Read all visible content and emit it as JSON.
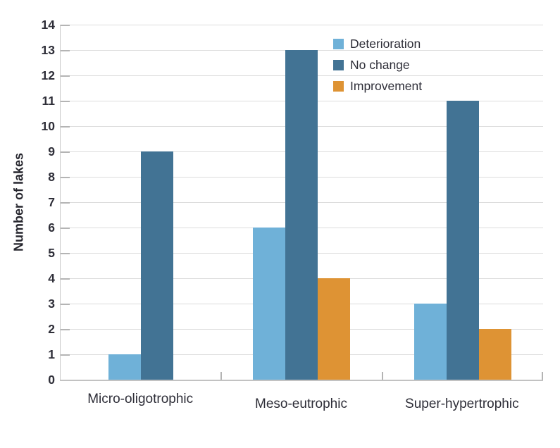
{
  "chart_data": {
    "type": "bar",
    "title": "",
    "xlabel": "",
    "ylabel": "Number of lakes",
    "ylim": [
      0,
      14
    ],
    "ytick_step": 1,
    "grid": true,
    "legend_position": "top-inside",
    "categories": [
      "Micro-oligotrophic",
      "Meso-eutrophic",
      "Super-hypertrophic"
    ],
    "series": [
      {
        "name": "Deterioration",
        "color": "#6fb1d8",
        "values": [
          1,
          6,
          3
        ]
      },
      {
        "name": "No change",
        "color": "#427394",
        "values": [
          9,
          13,
          11
        ]
      },
      {
        "name": "Improvement",
        "color": "#de9334",
        "values": [
          0,
          4,
          2
        ]
      }
    ]
  },
  "colors": {
    "gridline": "#dcdcdc",
    "axis": "#c2c2c2",
    "text": "#2e2e38"
  }
}
